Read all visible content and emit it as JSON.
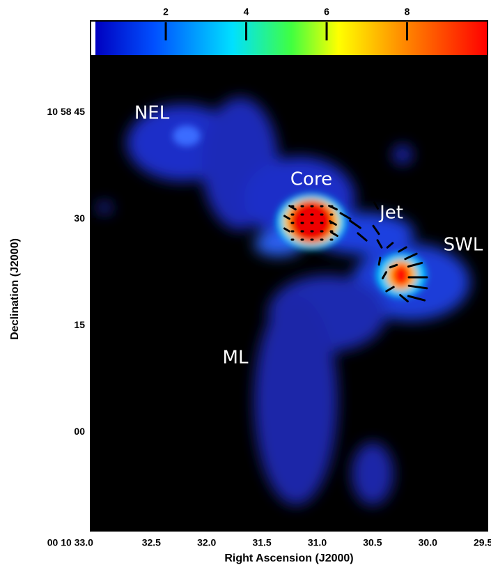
{
  "chart_data": {
    "type": "image",
    "xlabel": "Right Ascension (J2000)",
    "ylabel": "Declination (J2000)",
    "xlim": [
      33.05,
      29.46
    ],
    "xticks": [
      {
        "value": 33.0,
        "label": "00 10 33.0"
      },
      32.5,
      {
        "value": 32.0,
        "label": "32.0"
      },
      31.5,
      {
        "value": 31.0,
        "label": "31.0"
      },
      30.5,
      {
        "value": 30.0,
        "label": "30.0"
      },
      29.5
    ],
    "ylim": [
      -13.9,
      52.8
    ],
    "yticks": [
      {
        "value": 45,
        "label": "10 58 45"
      },
      30,
      15,
      {
        "value": 0,
        "label": "00"
      }
    ],
    "clim": [
      0.25,
      10
    ],
    "cticks": [
      2,
      4,
      6,
      8
    ],
    "annotations": [
      "NEL",
      "Core",
      "Jet",
      "SWL",
      "ML"
    ]
  }
}
